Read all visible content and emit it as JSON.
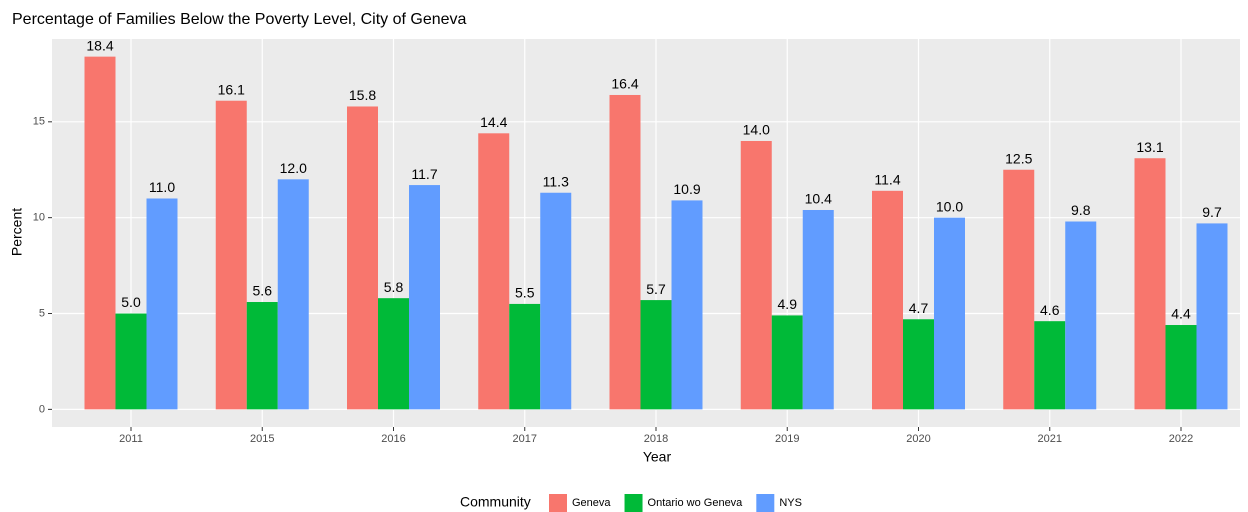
{
  "chart_data": {
    "type": "bar",
    "title": "Percentage of Families Below the Poverty Level, City of Geneva",
    "x_label": "Year",
    "y_label": "Percent",
    "legend_title": "Community",
    "categories": [
      "2011",
      "2015",
      "2016",
      "2017",
      "2018",
      "2019",
      "2020",
      "2021",
      "2022"
    ],
    "series": [
      {
        "name": "Geneva",
        "color": "#F8766D",
        "values": [
          18.4,
          16.1,
          15.8,
          14.4,
          16.4,
          14.0,
          11.4,
          12.5,
          13.1
        ],
        "value_labels": [
          "18.4",
          "16.1",
          "15.8",
          "14.4",
          "16.4",
          "14.0",
          "11.4",
          "12.5",
          "13.1"
        ]
      },
      {
        "name": "Ontario wo Geneva",
        "color": "#00BA38",
        "values": [
          5.0,
          5.6,
          5.8,
          5.5,
          5.7,
          4.9,
          4.7,
          4.6,
          4.4
        ],
        "value_labels": [
          "5.0",
          "5.6",
          "5.8",
          "5.5",
          "5.7",
          "4.9",
          "4.7",
          "4.6",
          "4.4"
        ]
      },
      {
        "name": "NYS",
        "color": "#619CFF",
        "values": [
          11.0,
          12.0,
          11.7,
          11.3,
          10.9,
          10.4,
          10.0,
          9.8,
          9.7
        ],
        "value_labels": [
          "11.0",
          "12.0",
          "11.7",
          "11.3",
          "10.9",
          "10.4",
          "10.0",
          "9.8",
          "9.7"
        ]
      }
    ],
    "ylim": [
      -0.92,
      19.32
    ],
    "yticks": [
      0,
      5,
      10,
      15
    ],
    "grid": true,
    "legend": "bottom"
  }
}
